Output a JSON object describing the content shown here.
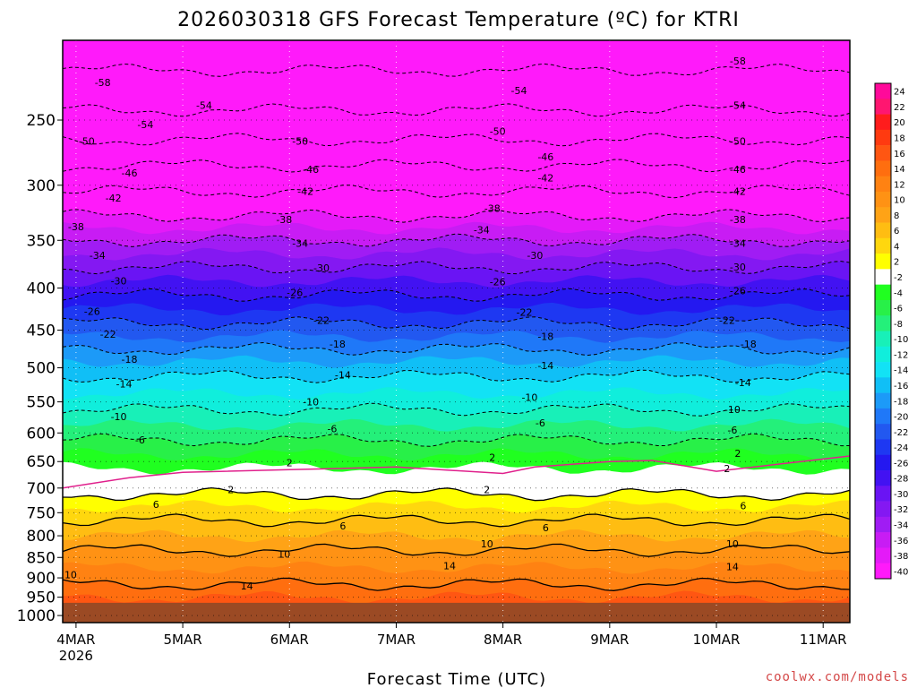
{
  "chart_data": {
    "type": "heatmap",
    "title": "2026030318 GFS Forecast Temperature (ºC) for KTRI",
    "xlabel": "Forecast Time (UTC)",
    "ylabel": "",
    "credit": "coolwx.com/models",
    "x_ticks": [
      {
        "label": "4MAR",
        "sub": "2026",
        "day": 4
      },
      {
        "label": "5MAR",
        "sub": "",
        "day": 5
      },
      {
        "label": "6MAR",
        "sub": "",
        "day": 6
      },
      {
        "label": "7MAR",
        "sub": "",
        "day": 7
      },
      {
        "label": "8MAR",
        "sub": "",
        "day": 8
      },
      {
        "label": "9MAR",
        "sub": "",
        "day": 9
      },
      {
        "label": "10MAR",
        "sub": "",
        "day": 10
      },
      {
        "label": "11MAR",
        "sub": "",
        "day": 11
      }
    ],
    "xlim_days": [
      3.875,
      11.25
    ],
    "y_ticks": [
      250,
      300,
      350,
      400,
      450,
      500,
      550,
      600,
      650,
      700,
      750,
      800,
      850,
      900,
      950,
      1000
    ],
    "ylim_hpa": [
      200,
      1020
    ],
    "y_scale": "log-pressure",
    "ground_below_hpa": 965,
    "ground_color": "#9b4a24",
    "grid": true,
    "colorbar": {
      "position": "right",
      "levels": [
        24,
        22,
        20,
        18,
        16,
        14,
        12,
        10,
        8,
        6,
        4,
        2,
        -2,
        -4,
        -6,
        -8,
        -10,
        -12,
        -14,
        -16,
        -18,
        -20,
        -22,
        -24,
        -26,
        -28,
        -30,
        -32,
        -34,
        -36,
        -38,
        -40
      ],
      "colors": [
        "#ff0a9a",
        "#ff1670",
        "#ff1c1c",
        "#ff3a10",
        "#ff5612",
        "#ff6e0f",
        "#ff8212",
        "#ff9214",
        "#ffa316",
        "#ffbd12",
        "#ffd70e",
        "#ffff00",
        "#ffffff",
        "#20ff20",
        "#28f048",
        "#24f07a",
        "#18f0b8",
        "#10eedc",
        "#12e2f5",
        "#10bff6",
        "#1c9af8",
        "#1f78f8",
        "#2258f0",
        "#1e38f2",
        "#2418f0",
        "#4212f2",
        "#6a14f4",
        "#8418f2",
        "#a01cf4",
        "#c81cf4",
        "#e41af8",
        "#ff1afa"
      ]
    },
    "profile_hpa": [
      1000,
      950,
      900,
      850,
      800,
      750,
      700,
      650,
      600,
      550,
      500,
      450,
      400,
      350,
      300,
      250,
      200
    ],
    "temperature_profile_c": [
      15,
      16,
      13,
      11,
      8,
      5,
      1,
      -3,
      -7,
      -11,
      -15,
      -21,
      -27,
      -34,
      -43,
      -53,
      -61
    ],
    "freezing_level_hpa": [
      700,
      680,
      670,
      665,
      660,
      672,
      660,
      650,
      648,
      668,
      640
    ],
    "freezing_level_days": [
      3.875,
      4.5,
      5.0,
      6.0,
      7.0,
      8.0,
      8.3,
      9.0,
      9.4,
      10.0,
      11.25
    ],
    "contour_labels": [
      {
        "v": -58,
        "d": 4.25,
        "p": 225
      },
      {
        "v": -58,
        "d": 10.2,
        "p": 212
      },
      {
        "v": -54,
        "d": 4.65,
        "p": 253
      },
      {
        "v": -54,
        "d": 5.2,
        "p": 240
      },
      {
        "v": -54,
        "d": 8.15,
        "p": 230
      },
      {
        "v": -54,
        "d": 10.2,
        "p": 240
      },
      {
        "v": -50,
        "d": 4.1,
        "p": 265
      },
      {
        "v": -50,
        "d": 6.1,
        "p": 265
      },
      {
        "v": -50,
        "d": 7.95,
        "p": 258
      },
      {
        "v": -50,
        "d": 10.2,
        "p": 265
      },
      {
        "v": -46,
        "d": 4.5,
        "p": 290
      },
      {
        "v": -46,
        "d": 6.2,
        "p": 287
      },
      {
        "v": -46,
        "d": 8.4,
        "p": 277
      },
      {
        "v": -46,
        "d": 10.2,
        "p": 287
      },
      {
        "v": -42,
        "d": 4.35,
        "p": 311
      },
      {
        "v": -42,
        "d": 6.15,
        "p": 305
      },
      {
        "v": -42,
        "d": 8.4,
        "p": 294
      },
      {
        "v": -42,
        "d": 10.2,
        "p": 305
      },
      {
        "v": -38,
        "d": 4.0,
        "p": 337
      },
      {
        "v": -38,
        "d": 5.95,
        "p": 330
      },
      {
        "v": -38,
        "d": 7.9,
        "p": 320
      },
      {
        "v": -38,
        "d": 10.2,
        "p": 330
      },
      {
        "v": -34,
        "d": 4.2,
        "p": 365
      },
      {
        "v": -34,
        "d": 6.1,
        "p": 353
      },
      {
        "v": -34,
        "d": 7.8,
        "p": 340
      },
      {
        "v": -34,
        "d": 10.2,
        "p": 353
      },
      {
        "v": -30,
        "d": 4.4,
        "p": 392
      },
      {
        "v": -30,
        "d": 6.3,
        "p": 378
      },
      {
        "v": -30,
        "d": 8.3,
        "p": 365
      },
      {
        "v": -30,
        "d": 10.2,
        "p": 377
      },
      {
        "v": -26,
        "d": 4.15,
        "p": 427
      },
      {
        "v": -26,
        "d": 6.05,
        "p": 405
      },
      {
        "v": -26,
        "d": 7.95,
        "p": 393
      },
      {
        "v": -26,
        "d": 10.2,
        "p": 403
      },
      {
        "v": -22,
        "d": 4.3,
        "p": 455
      },
      {
        "v": -22,
        "d": 6.3,
        "p": 438
      },
      {
        "v": -22,
        "d": 8.2,
        "p": 428
      },
      {
        "v": -22,
        "d": 10.1,
        "p": 438
      },
      {
        "v": -18,
        "d": 4.5,
        "p": 488
      },
      {
        "v": -18,
        "d": 6.45,
        "p": 468
      },
      {
        "v": -18,
        "d": 8.4,
        "p": 458
      },
      {
        "v": -18,
        "d": 10.3,
        "p": 468
      },
      {
        "v": -14,
        "d": 4.45,
        "p": 523
      },
      {
        "v": -14,
        "d": 6.5,
        "p": 510
      },
      {
        "v": -14,
        "d": 8.4,
        "p": 497
      },
      {
        "v": -14,
        "d": 10.25,
        "p": 521
      },
      {
        "v": -10,
        "d": 4.4,
        "p": 573
      },
      {
        "v": -10,
        "d": 6.2,
        "p": 550
      },
      {
        "v": -10,
        "d": 8.25,
        "p": 543
      },
      {
        "v": -10,
        "d": 10.15,
        "p": 562
      },
      {
        "v": -6,
        "d": 4.6,
        "p": 612
      },
      {
        "v": -6,
        "d": 6.4,
        "p": 593
      },
      {
        "v": -6,
        "d": 8.35,
        "p": 583
      },
      {
        "v": -6,
        "d": 10.15,
        "p": 595
      },
      {
        "v": 2,
        "d": 6.0,
        "p": 652
      },
      {
        "v": 2,
        "d": 7.9,
        "p": 642
      },
      {
        "v": 2,
        "d": 10.2,
        "p": 635
      },
      {
        "v": 2,
        "d": 10.1,
        "p": 663
      },
      {
        "v": 2,
        "d": 5.45,
        "p": 703
      },
      {
        "v": 2,
        "d": 7.85,
        "p": 703
      },
      {
        "v": 6,
        "d": 4.75,
        "p": 733
      },
      {
        "v": 6,
        "d": 6.5,
        "p": 778
      },
      {
        "v": 6,
        "d": 8.4,
        "p": 782
      },
      {
        "v": 6,
        "d": 10.25,
        "p": 735
      },
      {
        "v": 10,
        "d": 3.95,
        "p": 892
      },
      {
        "v": 10,
        "d": 5.95,
        "p": 842
      },
      {
        "v": 10,
        "d": 7.85,
        "p": 818
      },
      {
        "v": 10,
        "d": 10.15,
        "p": 818
      },
      {
        "v": 14,
        "d": 5.6,
        "p": 920
      },
      {
        "v": 14,
        "d": 7.5,
        "p": 870
      },
      {
        "v": 14,
        "d": 10.15,
        "p": 872
      }
    ]
  }
}
